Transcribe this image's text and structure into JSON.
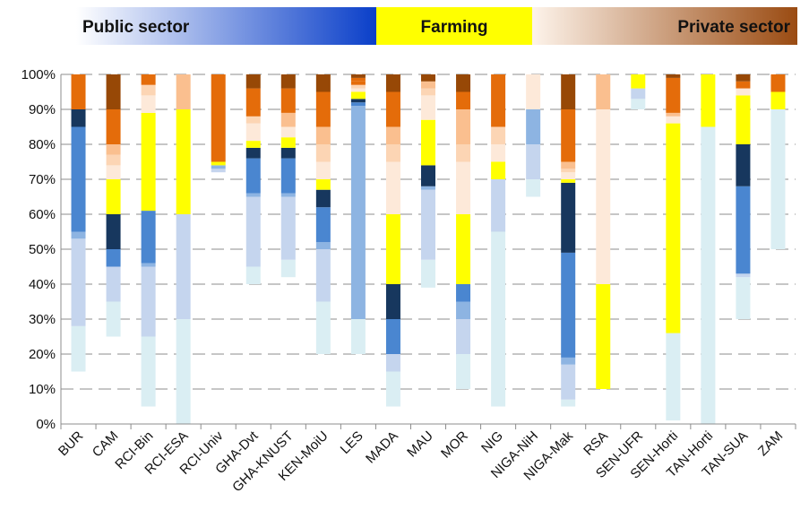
{
  "legend": [
    {
      "label": "Public sector",
      "gradient": [
        "#ffffff",
        "#0a3fc9"
      ],
      "align": "left"
    },
    {
      "label": "Farming",
      "color": "#ffff00",
      "align": "center"
    },
    {
      "label": "Private sector",
      "gradient": [
        "#fdf3ea",
        "#9a4b12"
      ],
      "align": "right"
    }
  ],
  "chart_data": {
    "type": "bar",
    "stacked": true,
    "title": "",
    "xlabel": "",
    "ylabel": "",
    "ylim": [
      0,
      100
    ],
    "yticks": [
      "0%",
      "10%",
      "20%",
      "30%",
      "40%",
      "50%",
      "60%",
      "70%",
      "80%",
      "90%",
      "100%"
    ],
    "grid": "dashed horizontal",
    "categories": [
      "BUR",
      "CAM",
      "RCI-Bin",
      "RCI-ESA",
      "RCI-Univ",
      "GHA-Dvt",
      "GHA-KNUST",
      "KEN-MoiU",
      "LES",
      "MADA",
      "MAU",
      "MOR",
      "NIG",
      "NIGA-NiH",
      "NIGA-Mak",
      "RSA",
      "SEN-UFR",
      "SEN-Horti",
      "TAN-Horti",
      "TAN-SUA",
      "ZAM"
    ],
    "series_colors": [
      "#daeef3",
      "#c5d5ee",
      "#8db4e2",
      "#4a86d0",
      "#17375e",
      "#ffff00",
      "#fde9d9",
      "#fcd5b4",
      "#fabf8f",
      "#e46c0a",
      "#974806"
    ],
    "segments": [
      [
        [
          15,
          28,
          0
        ],
        [
          28,
          53,
          1
        ],
        [
          53,
          55,
          2
        ],
        [
          55,
          85,
          3
        ],
        [
          85,
          90,
          4
        ],
        [
          90,
          100,
          9
        ]
      ],
      [
        [
          25,
          35,
          0
        ],
        [
          35,
          45,
          1
        ],
        [
          45,
          50,
          3
        ],
        [
          50,
          60,
          4
        ],
        [
          60,
          70,
          5
        ],
        [
          70,
          74,
          6
        ],
        [
          74,
          77,
          7
        ],
        [
          77,
          80,
          8
        ],
        [
          80,
          90,
          9
        ],
        [
          90,
          100,
          10
        ]
      ],
      [
        [
          5,
          25,
          0
        ],
        [
          25,
          45,
          1
        ],
        [
          45,
          46,
          2
        ],
        [
          46,
          61,
          3
        ],
        [
          61,
          89,
          5
        ],
        [
          89,
          94,
          6
        ],
        [
          94,
          97,
          7
        ],
        [
          97,
          100,
          9
        ]
      ],
      [
        [
          0,
          30,
          0
        ],
        [
          30,
          60,
          1
        ],
        [
          60,
          90,
          5
        ],
        [
          90,
          100,
          8
        ]
      ],
      [
        [
          72,
          73,
          1
        ],
        [
          73,
          74,
          2
        ],
        [
          74,
          75,
          5
        ],
        [
          75,
          100,
          9
        ]
      ],
      [
        [
          40,
          45,
          0
        ],
        [
          45,
          65,
          1
        ],
        [
          65,
          66,
          2
        ],
        [
          66,
          76,
          3
        ],
        [
          76,
          79,
          4
        ],
        [
          79,
          81,
          5
        ],
        [
          81,
          86,
          6
        ],
        [
          86,
          88,
          7
        ],
        [
          88,
          96,
          9
        ],
        [
          96,
          100,
          10
        ]
      ],
      [
        [
          42,
          47,
          0
        ],
        [
          47,
          65,
          1
        ],
        [
          65,
          66,
          2
        ],
        [
          66,
          76,
          3
        ],
        [
          76,
          79,
          4
        ],
        [
          79,
          82,
          5
        ],
        [
          82,
          85,
          6
        ],
        [
          85,
          89,
          8
        ],
        [
          89,
          96,
          9
        ],
        [
          96,
          100,
          10
        ]
      ],
      [
        [
          20,
          35,
          0
        ],
        [
          35,
          50,
          1
        ],
        [
          50,
          52,
          2
        ],
        [
          52,
          62,
          3
        ],
        [
          62,
          67,
          4
        ],
        [
          67,
          70,
          5
        ],
        [
          70,
          75,
          6
        ],
        [
          75,
          80,
          7
        ],
        [
          80,
          85,
          8
        ],
        [
          85,
          95,
          9
        ],
        [
          95,
          100,
          10
        ]
      ],
      [
        [
          20,
          30,
          0
        ],
        [
          30,
          91,
          2
        ],
        [
          91,
          92,
          3
        ],
        [
          92,
          93,
          4
        ],
        [
          93,
          95,
          5
        ],
        [
          95,
          96,
          6
        ],
        [
          96,
          97,
          7
        ],
        [
          97,
          98,
          9
        ],
        [
          98,
          99,
          9
        ],
        [
          99,
          100,
          10
        ]
      ],
      [
        [
          5,
          15,
          0
        ],
        [
          15,
          20,
          1
        ],
        [
          20,
          30,
          3
        ],
        [
          30,
          40,
          4
        ],
        [
          40,
          60,
          5
        ],
        [
          60,
          75,
          6
        ],
        [
          75,
          80,
          7
        ],
        [
          80,
          85,
          8
        ],
        [
          85,
          95,
          9
        ],
        [
          95,
          100,
          10
        ]
      ],
      [
        [
          39,
          47,
          0
        ],
        [
          47,
          67,
          1
        ],
        [
          67,
          68,
          2
        ],
        [
          68,
          74,
          4
        ],
        [
          74,
          87,
          5
        ],
        [
          87,
          94,
          6
        ],
        [
          94,
          96,
          7
        ],
        [
          96,
          98,
          8
        ],
        [
          98,
          100,
          10
        ]
      ],
      [
        [
          10,
          20,
          0
        ],
        [
          20,
          30,
          1
        ],
        [
          30,
          35,
          2
        ],
        [
          35,
          40,
          3
        ],
        [
          40,
          60,
          5
        ],
        [
          60,
          75,
          6
        ],
        [
          75,
          80,
          7
        ],
        [
          80,
          90,
          8
        ],
        [
          90,
          95,
          9
        ],
        [
          95,
          100,
          10
        ]
      ],
      [
        [
          5,
          55,
          0
        ],
        [
          55,
          70,
          1
        ],
        [
          70,
          75,
          5
        ],
        [
          75,
          80,
          6
        ],
        [
          80,
          85,
          7
        ],
        [
          85,
          100,
          9
        ]
      ],
      [
        [
          65,
          70,
          0
        ],
        [
          70,
          80,
          1
        ],
        [
          80,
          90,
          2
        ],
        [
          90,
          100,
          6
        ]
      ],
      [
        [
          5,
          7,
          0
        ],
        [
          7,
          17,
          1
        ],
        [
          17,
          19,
          2
        ],
        [
          19,
          49,
          3
        ],
        [
          49,
          69,
          4
        ],
        [
          69,
          70,
          5
        ],
        [
          70,
          72,
          6
        ],
        [
          72,
          73,
          7
        ],
        [
          73,
          75,
          8
        ],
        [
          75,
          90,
          9
        ],
        [
          90,
          100,
          10
        ]
      ],
      [
        [
          10,
          40,
          5
        ],
        [
          40,
          90,
          6
        ],
        [
          90,
          100,
          8
        ]
      ],
      [
        [
          90,
          93,
          0
        ],
        [
          93,
          96,
          1
        ],
        [
          96,
          100,
          5
        ]
      ],
      [
        [
          1,
          26,
          0
        ],
        [
          26,
          86,
          5
        ],
        [
          86,
          88,
          6
        ],
        [
          88,
          89,
          8
        ],
        [
          89,
          99,
          9
        ],
        [
          99,
          100,
          10
        ]
      ],
      [
        [
          0,
          85,
          0
        ],
        [
          85,
          100,
          5
        ]
      ],
      [
        [
          30,
          42,
          0
        ],
        [
          42,
          43,
          1
        ],
        [
          43,
          68,
          3
        ],
        [
          68,
          80,
          4
        ],
        [
          80,
          94,
          5
        ],
        [
          94,
          96,
          6
        ],
        [
          96,
          98,
          9
        ],
        [
          98,
          100,
          10
        ]
      ],
      [
        [
          50,
          90,
          0
        ],
        [
          90,
          95,
          5
        ],
        [
          95,
          100,
          9
        ]
      ]
    ]
  }
}
